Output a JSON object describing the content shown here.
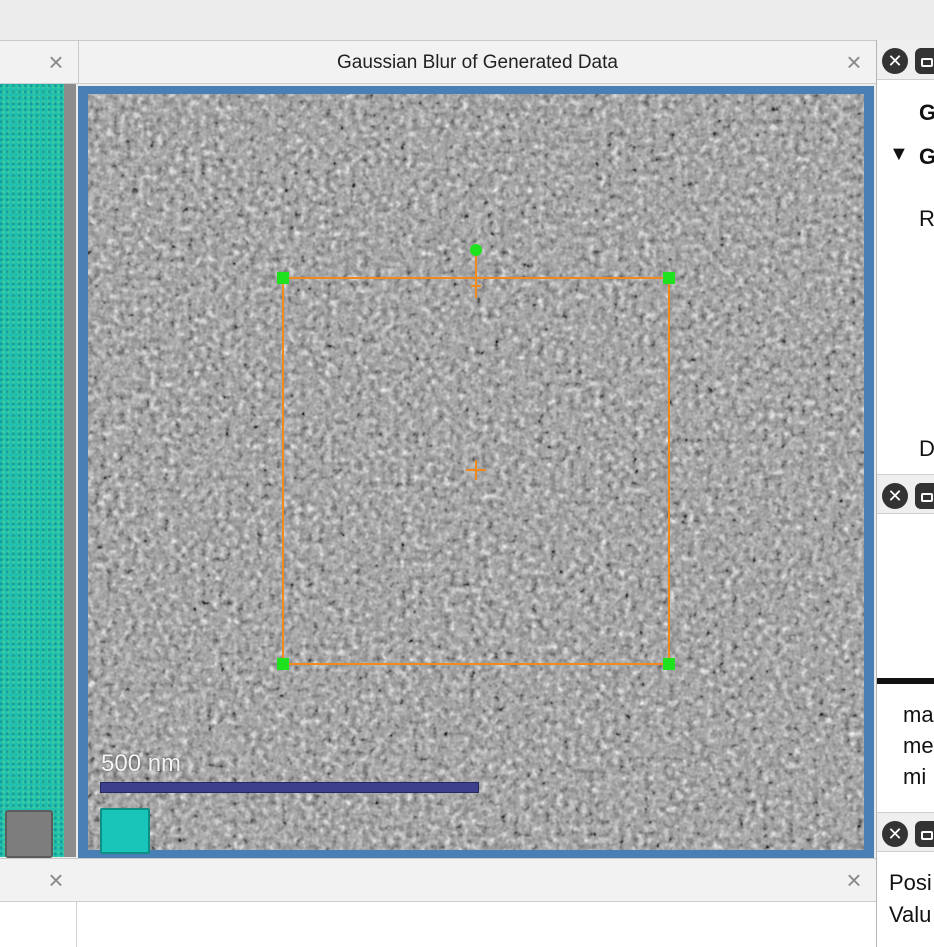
{
  "image_panel": {
    "title": "Gaussian Blur of Generated Data",
    "scale_bar_label": "500 nm"
  },
  "close_glyph": "×",
  "right_panel": {
    "section1": {
      "line1": "G",
      "line2": "G",
      "disclosure": "▼",
      "line3": "R",
      "line4": "D"
    },
    "stats": [
      "ma",
      "me",
      "mi"
    ],
    "info": [
      "Posi",
      "Valu"
    ],
    "button_glyph": "✕"
  },
  "colors": {
    "frame_blue": "#4a7fb5",
    "roi_orange": "#f08a1c",
    "handle_green": "#1fe21f",
    "scale_bar": "#3c3f8c",
    "cyan_swatch": "#19c4b8",
    "left_strip": "#1fbfb0"
  }
}
